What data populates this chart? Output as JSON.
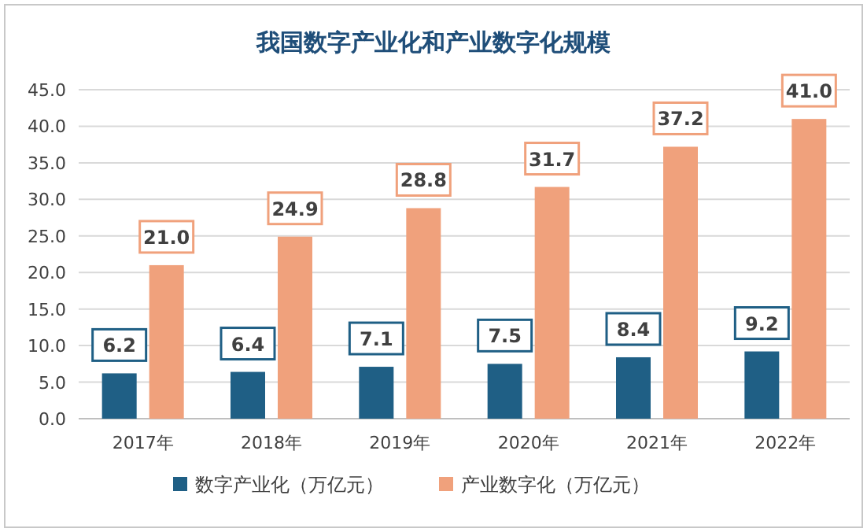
{
  "chart_data": {
    "type": "bar",
    "title": "我国数字产业化和产业数字化规模",
    "categories": [
      "2017年",
      "2018年",
      "2019年",
      "2020年",
      "2021年",
      "2022年"
    ],
    "series": [
      {
        "name": "数字产业化（万亿元）",
        "color": "#1f5f85",
        "values": [
          6.2,
          6.4,
          7.1,
          7.5,
          8.4,
          9.2
        ],
        "value_labels": [
          "6.2",
          "6.4",
          "7.1",
          "7.5",
          "8.4",
          "9.2"
        ]
      },
      {
        "name": "产业数字化（万亿元）",
        "color": "#f0a17c",
        "values": [
          21.0,
          24.9,
          28.8,
          31.7,
          37.2,
          41.0
        ],
        "value_labels": [
          "21.0",
          "24.9",
          "28.8",
          "31.7",
          "37.2",
          "41.0"
        ]
      }
    ],
    "ylim": [
      0,
      45
    ],
    "yticks": [
      {
        "value": 0,
        "label": "0.0"
      },
      {
        "value": 5,
        "label": "5.0"
      },
      {
        "value": 10,
        "label": "10.0"
      },
      {
        "value": 15,
        "label": "15.0"
      },
      {
        "value": 20,
        "label": "20.0"
      },
      {
        "value": 25,
        "label": "25.0"
      },
      {
        "value": 30,
        "label": "30.0"
      },
      {
        "value": 35,
        "label": "35.0"
      },
      {
        "value": 40,
        "label": "40.0"
      },
      {
        "value": 45,
        "label": "45.0"
      }
    ],
    "grid": "y",
    "legend": "bottom"
  }
}
